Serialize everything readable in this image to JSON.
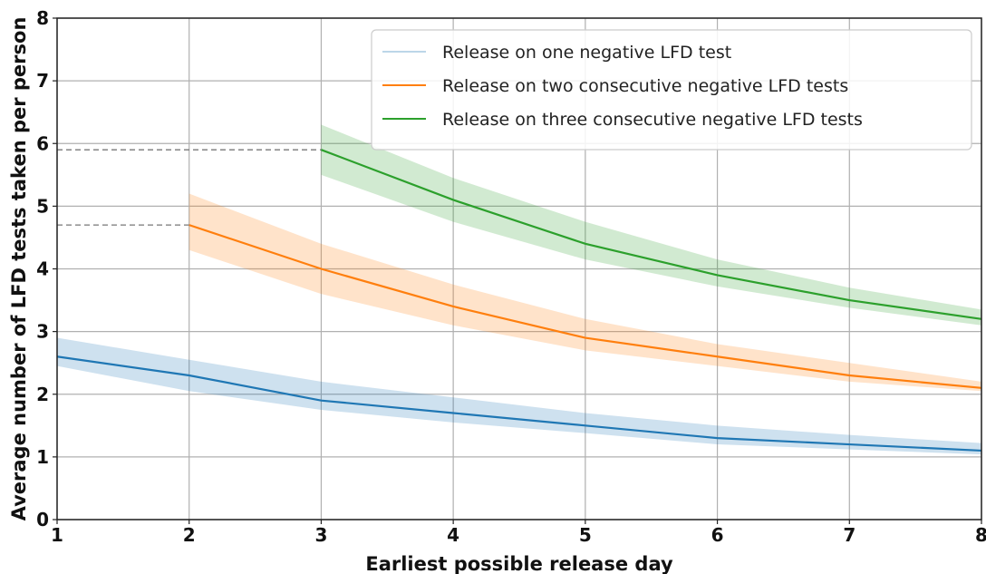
{
  "chart_data": {
    "type": "line",
    "title": "",
    "xlabel": "Earliest possible release day",
    "ylabel": "Average number of LFD tests taken per person",
    "xlim": [
      1,
      8
    ],
    "ylim": [
      0,
      8
    ],
    "xticks": [
      "1",
      "2",
      "3",
      "4",
      "5",
      "6",
      "7",
      "8"
    ],
    "yticks": [
      "0",
      "1",
      "2",
      "3",
      "4",
      "5",
      "6",
      "7",
      "8"
    ],
    "grid": true,
    "legend_position": "top-right",
    "series": [
      {
        "name": "Release on one negative LFD test",
        "color": "#1f77b4",
        "x": [
          1,
          2,
          3,
          4,
          5,
          6,
          7,
          8
        ],
        "y": [
          2.6,
          2.3,
          1.9,
          1.7,
          1.5,
          1.3,
          1.2,
          1.1
        ],
        "lower": [
          2.45,
          2.05,
          1.75,
          1.55,
          1.38,
          1.2,
          1.12,
          1.04
        ],
        "upper": [
          2.9,
          2.55,
          2.2,
          1.95,
          1.7,
          1.5,
          1.35,
          1.22
        ]
      },
      {
        "name": "Release on two consecutive negative LFD tests",
        "color": "#ff7f0e",
        "x": [
          2,
          3,
          4,
          5,
          6,
          7,
          8
        ],
        "y": [
          4.7,
          4.0,
          3.4,
          2.9,
          2.6,
          2.3,
          2.1
        ],
        "lower": [
          4.3,
          3.6,
          3.1,
          2.7,
          2.45,
          2.2,
          2.05
        ],
        "upper": [
          5.2,
          4.4,
          3.75,
          3.2,
          2.8,
          2.5,
          2.2
        ]
      },
      {
        "name": "Release on three consecutive negative LFD tests",
        "color": "#2ca02c",
        "x": [
          3,
          4,
          5,
          6,
          7,
          8
        ],
        "y": [
          5.9,
          5.1,
          4.4,
          3.9,
          3.5,
          3.2
        ],
        "lower": [
          5.5,
          4.75,
          4.15,
          3.72,
          3.38,
          3.1
        ],
        "upper": [
          6.3,
          5.45,
          4.75,
          4.15,
          3.7,
          3.35
        ]
      }
    ],
    "reference_lines": [
      {
        "x_start": 1,
        "x_end": 2,
        "y": 4.7
      },
      {
        "x_start": 1,
        "x_end": 3,
        "y": 5.9
      }
    ]
  }
}
